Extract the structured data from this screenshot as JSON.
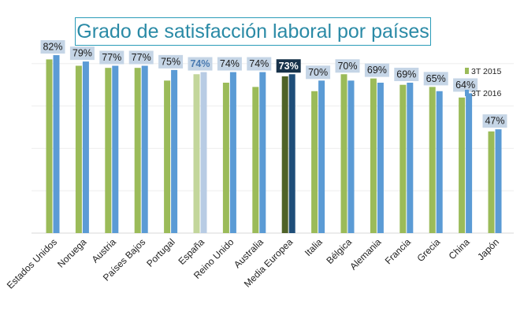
{
  "chart_data": {
    "type": "bar",
    "title": "Grado de satisfacción laboral por países",
    "categories": [
      "Estados Unidos",
      "Noruega",
      "Austria",
      "Países Bajos",
      "Portugal",
      "España",
      "Reino Unido",
      "Australia",
      "Media Europea",
      "Italia",
      "Bélgica",
      "Alemania",
      "Francia",
      "Grecia",
      "China",
      "Japón"
    ],
    "series": [
      {
        "name": "3T 2015",
        "values": [
          82,
          79,
          78,
          78,
          72,
          75,
          71,
          69,
          74,
          67,
          75,
          73,
          70,
          69,
          64,
          48
        ]
      },
      {
        "name": "3T 2016",
        "values": [
          84,
          81,
          79,
          79,
          77,
          76,
          76,
          76,
          75,
          72,
          72,
          71,
          71,
          67,
          66,
          49
        ]
      }
    ],
    "data_labels": [
      "82%",
      "79%",
      "77%",
      "77%",
      "75%",
      "74%",
      "74%",
      "74%",
      "73%",
      "70%",
      "70%",
      "69%",
      "69%",
      "65%",
      "64%",
      "47%"
    ],
    "highlight": {
      "España": "light",
      "Media Europea": "dark"
    },
    "ylim": [
      0,
      100
    ],
    "legend_position": "right",
    "grid": true,
    "colors": {
      "series_2015": "#9bbb59",
      "series_2016": "#5b9bd5",
      "espana_2015": "#c3d69b",
      "espana_2016": "#b8cce4",
      "media_2015": "#4f6228",
      "media_2016": "#1f4e79",
      "label_box": "#c5d5e6",
      "label_box_dark": "#17324a",
      "label_text": "#1a1a1a",
      "espana_label_text": "#4a7ab0",
      "gridline": "#eeeeee",
      "title": "#2a8aa6"
    }
  }
}
